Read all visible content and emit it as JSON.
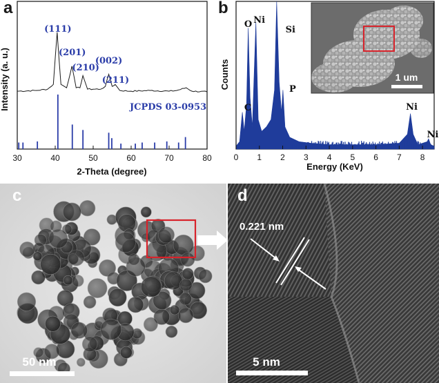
{
  "panels": {
    "a": "a",
    "b": "b",
    "c": "c",
    "d": "d"
  },
  "xrd": {
    "ylabel": "Intensity (a. u.)",
    "xlabel": "2-Theta (degree)",
    "xticks": [
      "30",
      "40",
      "50",
      "60",
      "70",
      "80"
    ],
    "reference_label": "JCPDS 03-0953",
    "peak_labels": [
      "(111)",
      "(201)",
      "(210)",
      "(002)",
      "(211)"
    ]
  },
  "eds": {
    "ylabel": "Counts",
    "xlabel": "Energy (KeV)",
    "xticks": [
      "0",
      "1",
      "2",
      "3",
      "4",
      "5",
      "6",
      "7",
      "8"
    ],
    "elements": {
      "c": "C",
      "o": "O",
      "ni1": "Ni",
      "si": "Si",
      "p": "P",
      "ni2": "Ni",
      "ni3": "Ni"
    },
    "inset_scale": "1 um"
  },
  "tem": {
    "scale": "50 nm"
  },
  "hrtem": {
    "scale": "5 nm",
    "lattice_spacing": "0.221 nm"
  },
  "colors": {
    "accent_blue": "#2a3ca8",
    "marker_red": "#d8222a",
    "spectrum_blue": "#1f3c9b"
  },
  "chart_data": [
    {
      "type": "line",
      "title": "",
      "xlabel": "2-Theta (degree)",
      "ylabel": "Intensity (a. u.)",
      "xlim": [
        30,
        80
      ],
      "grid": false,
      "series": [
        {
          "name": "",
          "x": [
            30,
            35,
            38,
            39.5,
            40.5,
            41.5,
            43,
            44.4,
            45.5,
            46.5,
            47.3,
            48.5,
            52,
            53.2,
            54.1,
            55,
            55.8,
            57,
            60,
            65,
            70,
            72,
            74.5,
            76,
            80
          ],
          "y": [
            0.05,
            0.06,
            0.08,
            0.15,
            0.92,
            0.15,
            0.1,
            0.42,
            0.1,
            0.1,
            0.28,
            0.08,
            0.08,
            0.12,
            0.3,
            0.12,
            0.15,
            0.06,
            0.05,
            0.06,
            0.05,
            0.06,
            0.1,
            0.05,
            0.04
          ]
        }
      ],
      "reference_sticks": {
        "name": "JCPDS 03-0953",
        "x": [
          30.4,
          31.5,
          35.3,
          40.7,
          44.5,
          47.3,
          54.1,
          54.9,
          57.3,
          61.1,
          62.9,
          66.2,
          69.4,
          72.5,
          74.3
        ],
        "y": [
          0.12,
          0.12,
          0.14,
          1.0,
          0.45,
          0.35,
          0.3,
          0.2,
          0.1,
          0.1,
          0.12,
          0.12,
          0.14,
          0.12,
          0.22
        ]
      },
      "annotations": [
        {
          "text": "(111)",
          "x": 40.7
        },
        {
          "text": "(201)",
          "x": 44.5
        },
        {
          "text": "(210)",
          "x": 47.3
        },
        {
          "text": "(002)",
          "x": 54.1
        },
        {
          "text": "(211)",
          "x": 55.9
        }
      ]
    },
    {
      "type": "area",
      "title": "",
      "xlabel": "Energy (KeV)",
      "ylabel": "Counts",
      "xlim": [
        0,
        8.5
      ],
      "grid": false,
      "series": [
        {
          "name": "",
          "x": [
            0,
            0.15,
            0.27,
            0.35,
            0.45,
            0.52,
            0.6,
            0.7,
            0.85,
            0.95,
            1.1,
            1.3,
            1.5,
            1.65,
            1.74,
            1.85,
            1.95,
            2.01,
            2.1,
            2.3,
            2.7,
            3.2,
            4,
            5,
            6,
            7,
            7.35,
            7.48,
            7.6,
            7.8,
            8.2,
            8.26,
            8.35,
            8.5
          ],
          "y": [
            0.02,
            0.05,
            0.25,
            0.12,
            0.3,
            0.82,
            0.35,
            0.15,
            0.86,
            0.2,
            0.12,
            0.15,
            0.2,
            0.4,
            1.0,
            0.45,
            0.25,
            0.4,
            0.15,
            0.08,
            0.05,
            0.04,
            0.03,
            0.03,
            0.03,
            0.04,
            0.1,
            0.24,
            0.1,
            0.03,
            0.05,
            0.07,
            0.03,
            0.02
          ]
        }
      ],
      "annotations": [
        {
          "text": "C",
          "x": 0.27
        },
        {
          "text": "O",
          "x": 0.52
        },
        {
          "text": "Ni",
          "x": 0.85
        },
        {
          "text": "Si",
          "x": 1.74
        },
        {
          "text": "P",
          "x": 2.01
        },
        {
          "text": "Ni",
          "x": 7.48
        },
        {
          "text": "Ni",
          "x": 8.26
        }
      ]
    }
  ]
}
